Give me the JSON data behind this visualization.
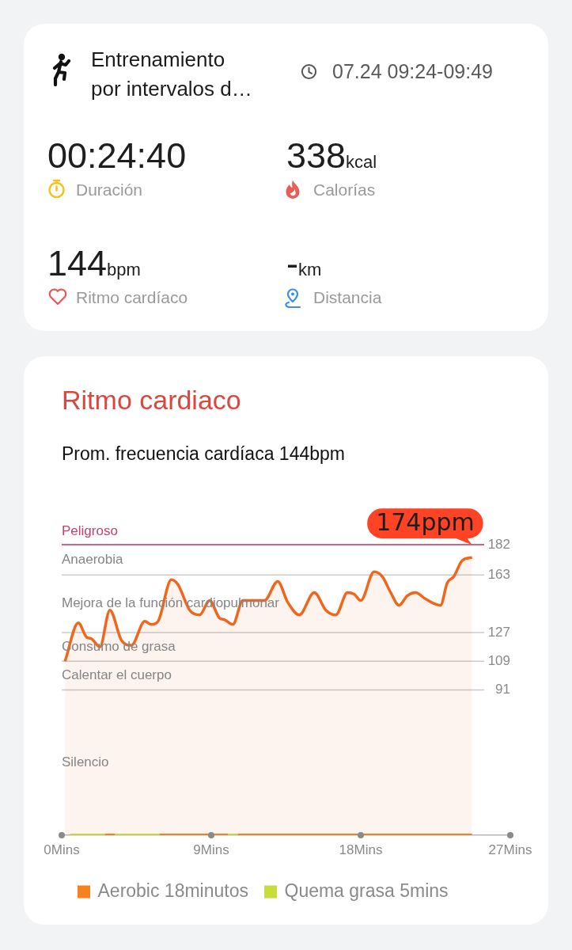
{
  "chart_data": [
    {
      "type": "other",
      "title": "Entrenamiento por intervalos d…",
      "subtitle": "07.24 09:24-09:49",
      "annotations": [
        "00:24:40",
        "Duración",
        "338kcal",
        "Calorías",
        "144bpm",
        "Ritmo cardíaco",
        "-km",
        "Distancia"
      ]
    },
    {
      "type": "line",
      "title": "Ritmo cardiaco",
      "subtitle": "Prom. frecuencia cardíaca 144bpm",
      "xlim": [
        0,
        27
      ],
      "xticks": [
        {
          "value": 0,
          "label": "0Mins"
        },
        {
          "value": 9,
          "label": "9Mins"
        },
        {
          "value": 18,
          "label": "18Mins"
        },
        {
          "value": 27,
          "label": "27Mins"
        }
      ],
      "ylim": [
        0,
        182
      ],
      "yticks": [
        91,
        109,
        127,
        163,
        182
      ],
      "grid": "y",
      "legend": "bottom",
      "marker": "none",
      "series": [
        {
          "type": "area",
          "color": "#f0661c",
          "x": [
            0.2,
            1.0,
            1.5,
            1.8,
            2.3,
            2.9,
            3.6,
            4.2,
            5.0,
            5.4,
            5.8,
            6.6,
            7.0,
            7.7,
            8.3,
            8.9,
            9.5,
            9.8,
            10.3,
            10.9,
            11.4,
            12.2,
            13.0,
            13.6,
            14.3,
            15.2,
            15.9,
            16.5,
            17.2,
            17.6,
            18.0,
            18.8,
            19.3,
            19.8,
            20.3,
            20.8,
            21.3,
            21.9,
            22.8,
            23.2,
            23.6,
            24.1,
            24.7
          ],
          "values": [
            109,
            133,
            124,
            123,
            118,
            141,
            122,
            119,
            134,
            132,
            134,
            160,
            157,
            141,
            138,
            147,
            136,
            135,
            132,
            147,
            147,
            147,
            159,
            146,
            138,
            152,
            141,
            138,
            152,
            151,
            147,
            165,
            162,
            152,
            144,
            150,
            152,
            148,
            144,
            158,
            162,
            172,
            174
          ]
        },
        {
          "type": "line",
          "name": "Aerobic 18minutos",
          "color": "#f5821f",
          "x": [
            2.6,
            3.2,
            4.5,
            5.9,
            10,
            10.3,
            10.6,
            24.7
          ],
          "values": [
            0,
            0,
            null,
            0,
            0,
            null,
            0,
            0
          ]
        },
        {
          "type": "line",
          "name": "Quema grasa 5mins",
          "color": "#c8dc3c",
          "x": [
            0.5,
            2.6,
            2.9,
            3.2,
            5.9,
            8,
            10,
            10.6
          ],
          "values": [
            0,
            0,
            null,
            0,
            0,
            null,
            0,
            0
          ]
        }
      ],
      "ref_lines": [
        {
          "axis": "y",
          "value": 182,
          "label": "Peligroso",
          "color": "#c8416a"
        }
      ],
      "annotations": [
        "Anaerobia",
        "Mejora de la función cardiopulmonar",
        "Consumo de grasa",
        "Calentar el cuerpo",
        "Silencio",
        {
          "text": "174ppm",
          "x": 24.7,
          "y": 174
        }
      ]
    }
  ]
}
